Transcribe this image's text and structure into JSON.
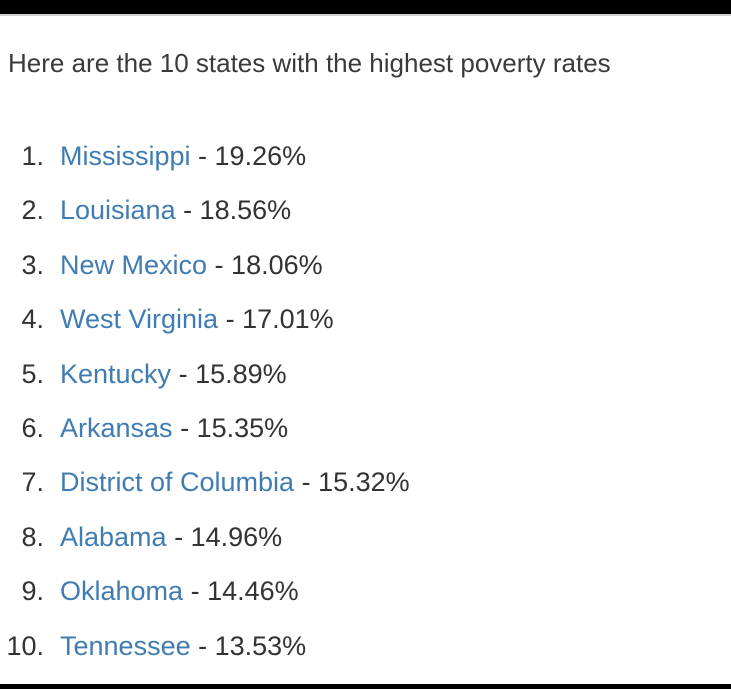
{
  "intro_text": "Here are the 10 states with the highest poverty rates",
  "separator": " - ",
  "states": [
    {
      "rank": "1.",
      "name": "Mississippi",
      "rate": "19.26%"
    },
    {
      "rank": "2.",
      "name": "Louisiana",
      "rate": "18.56%"
    },
    {
      "rank": "3.",
      "name": "New Mexico",
      "rate": "18.06%"
    },
    {
      "rank": "4.",
      "name": "West Virginia",
      "rate": "17.01%"
    },
    {
      "rank": "5.",
      "name": "Kentucky",
      "rate": "15.89%"
    },
    {
      "rank": "6.",
      "name": "Arkansas",
      "rate": "15.35%"
    },
    {
      "rank": "7.",
      "name": "District of Columbia",
      "rate": "15.32%"
    },
    {
      "rank": "8.",
      "name": "Alabama",
      "rate": "14.96%"
    },
    {
      "rank": "9.",
      "name": "Oklahoma",
      "rate": "14.46%"
    },
    {
      "rank": "10.",
      "name": "Tennessee",
      "rate": "13.53%"
    }
  ],
  "colors": {
    "link": "#3f7cb3",
    "text": "#333333",
    "frame": "#000000"
  }
}
